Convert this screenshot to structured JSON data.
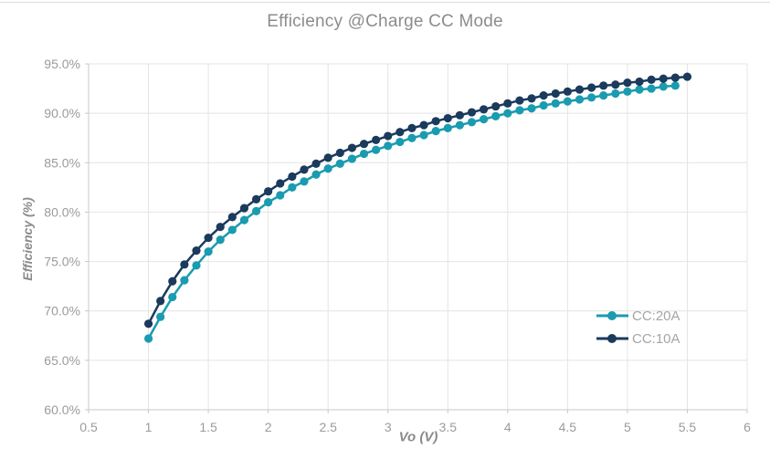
{
  "chart_data": {
    "type": "line",
    "title": "Efficiency @Charge CC Mode",
    "xlabel": "Vo (V)",
    "ylabel": "Efficiency (%)",
    "xlim": [
      0.5,
      6
    ],
    "ylim": [
      60,
      95
    ],
    "x_ticks": [
      0.5,
      1,
      1.5,
      2,
      2.5,
      3,
      3.5,
      4,
      4.5,
      5,
      5.5,
      6
    ],
    "x_tick_labels": [
      "0.5",
      "1",
      "1.5",
      "2",
      "2.5",
      "3",
      "3.5",
      "4",
      "4.5",
      "5",
      "5.5",
      "6"
    ],
    "y_ticks": [
      60,
      65,
      70,
      75,
      80,
      85,
      90,
      95
    ],
    "y_tick_labels": [
      "60.0%",
      "65.0%",
      "70.0%",
      "75.0%",
      "80.0%",
      "85.0%",
      "90.0%",
      "95.0%"
    ],
    "grid": true,
    "legend": {
      "position": "right-middle",
      "entries": [
        "CC:20A",
        "CC:10A"
      ]
    },
    "series": [
      {
        "name": "CC:20A",
        "color": "#1a9bb0",
        "x": [
          1.0,
          1.1,
          1.2,
          1.3,
          1.4,
          1.5,
          1.6,
          1.7,
          1.8,
          1.9,
          2.0,
          2.1,
          2.2,
          2.3,
          2.4,
          2.5,
          2.6,
          2.7,
          2.8,
          2.9,
          3.0,
          3.1,
          3.2,
          3.3,
          3.4,
          3.5,
          3.6,
          3.7,
          3.8,
          3.9,
          4.0,
          4.1,
          4.2,
          4.3,
          4.4,
          4.5,
          4.6,
          4.7,
          4.8,
          4.9,
          5.0,
          5.1,
          5.2,
          5.3,
          5.4
        ],
        "values": [
          67.2,
          69.4,
          71.4,
          73.1,
          74.6,
          76.0,
          77.2,
          78.2,
          79.2,
          80.1,
          81.0,
          81.7,
          82.5,
          83.1,
          83.8,
          84.4,
          84.9,
          85.4,
          85.9,
          86.3,
          86.7,
          87.1,
          87.5,
          87.8,
          88.2,
          88.5,
          88.8,
          89.1,
          89.4,
          89.7,
          90.0,
          90.3,
          90.5,
          90.8,
          91.0,
          91.2,
          91.4,
          91.6,
          91.8,
          92.0,
          92.2,
          92.4,
          92.5,
          92.7,
          92.8
        ]
      },
      {
        "name": "CC:10A",
        "color": "#1b3a5c",
        "x": [
          1.0,
          1.1,
          1.2,
          1.3,
          1.4,
          1.5,
          1.6,
          1.7,
          1.8,
          1.9,
          2.0,
          2.1,
          2.2,
          2.3,
          2.4,
          2.5,
          2.6,
          2.7,
          2.8,
          2.9,
          3.0,
          3.1,
          3.2,
          3.3,
          3.4,
          3.5,
          3.6,
          3.7,
          3.8,
          3.9,
          4.0,
          4.1,
          4.2,
          4.3,
          4.4,
          4.5,
          4.6,
          4.7,
          4.8,
          4.9,
          5.0,
          5.1,
          5.2,
          5.3,
          5.4,
          5.5
        ],
        "values": [
          68.7,
          71.0,
          73.0,
          74.7,
          76.1,
          77.4,
          78.5,
          79.5,
          80.4,
          81.3,
          82.1,
          82.9,
          83.6,
          84.3,
          84.9,
          85.5,
          86.0,
          86.5,
          86.9,
          87.3,
          87.7,
          88.1,
          88.5,
          88.8,
          89.2,
          89.5,
          89.8,
          90.1,
          90.4,
          90.7,
          91.0,
          91.3,
          91.5,
          91.8,
          92.0,
          92.2,
          92.4,
          92.6,
          92.8,
          92.9,
          93.1,
          93.2,
          93.4,
          93.5,
          93.6,
          93.7
        ]
      }
    ],
    "colors": {
      "background": "#ffffff",
      "title_text": "#8c8c8c",
      "axis_label_text": "#8a8a8a",
      "tick_text": "#9b9b9b",
      "legend_text": "#a5a5a5",
      "gridline": "#e4e4e4",
      "axis_line": "#c9c9c9"
    }
  }
}
